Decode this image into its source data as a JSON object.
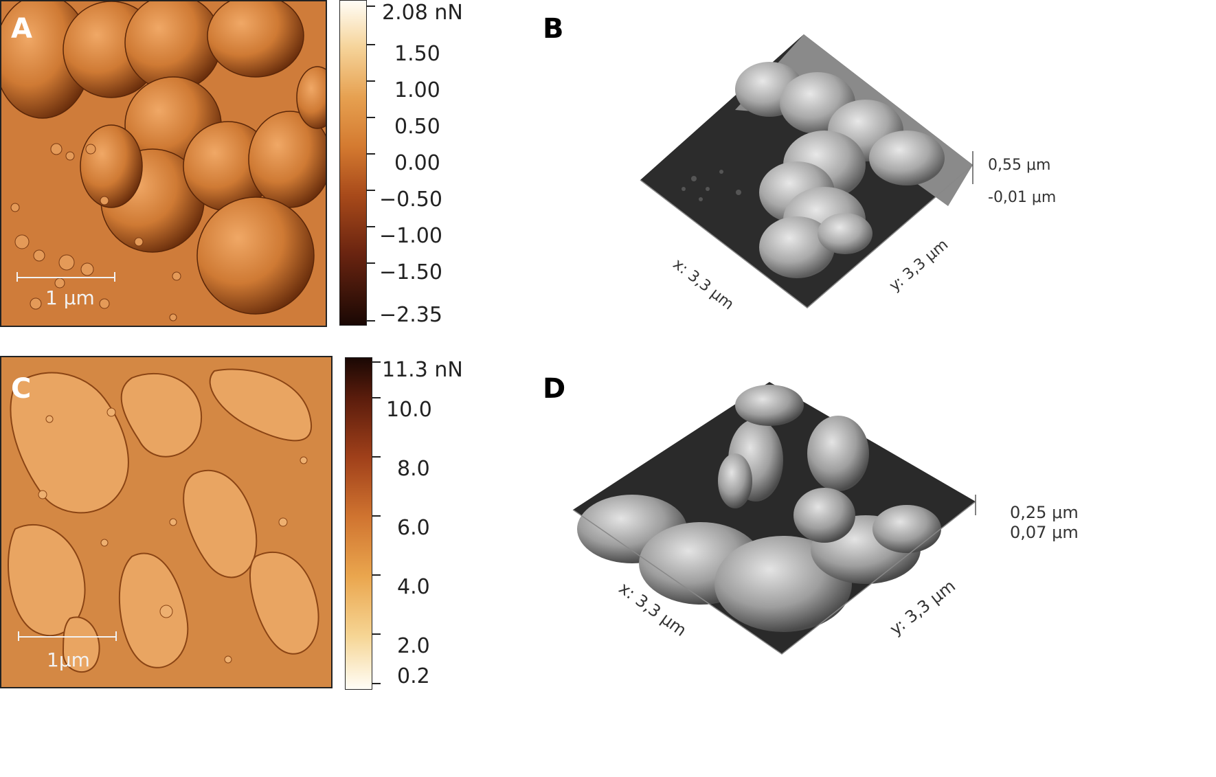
{
  "panels": {
    "A": {
      "letter": "A",
      "scale_label": "1 μm",
      "colorbar_labels": [
        "2.08 nN",
        "1.50",
        "1.00",
        "0.50",
        "0.00",
        "−0.50",
        "−1.00",
        "−1.50",
        "−2.35"
      ]
    },
    "B": {
      "letter": "B",
      "x_label": "x: 3,3 μm",
      "y_label": "y: 3,3 μm",
      "z_max": "0,55 μm",
      "z_min": "-0,01 μm"
    },
    "C": {
      "letter": "C",
      "scale_label": "1μm",
      "colorbar_labels": [
        "11.3 nN",
        "10.0",
        "8.0",
        "6.0",
        "4.0",
        "2.0",
        "0.2"
      ]
    },
    "D": {
      "letter": "D",
      "x_label": "x: 3,3 μm",
      "y_label": "y: 3,3 μm",
      "z_max": "0,25 μm",
      "z_min": "0,07 μm"
    }
  },
  "colors": {
    "afm_orange": "#c8732e",
    "afm_dark": "#1a0a04",
    "afm_light": "#fff8ee",
    "topo_dark": "#2a2a2a",
    "topo_light": "#e6e6e6"
  }
}
